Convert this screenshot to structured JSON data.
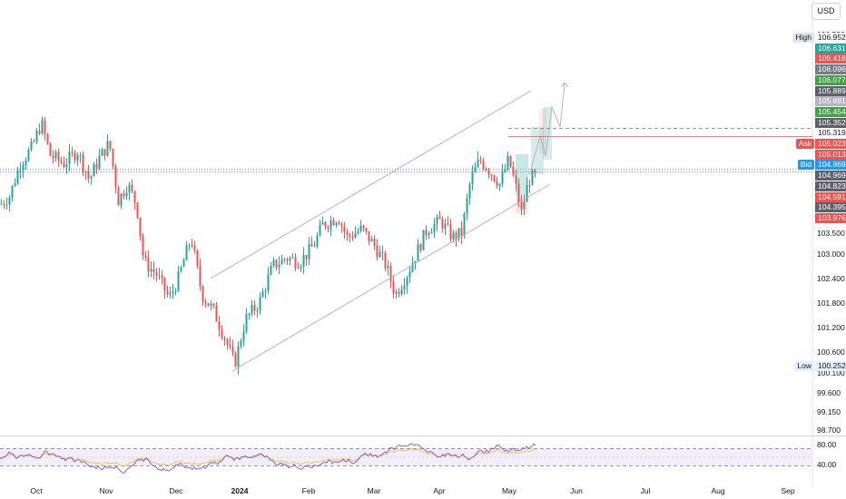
{
  "currency": "USD",
  "price_axis": {
    "ticks": [
      "106.500",
      "103.500",
      "103.000",
      "102.400",
      "101.800",
      "101.200",
      "100.600",
      "100.100",
      "99.600",
      "99.150",
      "98.700"
    ],
    "tick_values": [
      106.5,
      103.5,
      103.0,
      102.4,
      101.8,
      101.2,
      100.6,
      100.1,
      99.6,
      99.15,
      98.7
    ]
  },
  "price_tags": [
    {
      "value": "106.952",
      "color": "#ffffff",
      "text_color": "#131722",
      "side_label": "High"
    },
    {
      "value": "106.631",
      "color": "#26a69a",
      "text_color": "#ffffff"
    },
    {
      "value": "106.418",
      "color": "#ef5350",
      "text_color": "#ffffff"
    },
    {
      "value": "106.096",
      "color": "#787b86",
      "text_color": "#ffffff"
    },
    {
      "value": "106.077",
      "color": "#43a047",
      "text_color": "#ffffff"
    },
    {
      "value": "105.889",
      "color": "#5d606b",
      "text_color": "#ffffff"
    },
    {
      "value": "105.881",
      "color": "#b2b5be",
      "text_color": "#ffffff"
    },
    {
      "value": "105.454",
      "color": "#43a047",
      "text_color": "#ffffff"
    },
    {
      "value": "105.352",
      "color": "#5d606b",
      "text_color": "#ffffff"
    },
    {
      "value": "105.319",
      "color": "#ffffff",
      "text_color": "#131722"
    },
    {
      "value": "105.023",
      "color": "#ef5350",
      "text_color": "#ffffff",
      "side_label": "Ask",
      "side_color": "#ef5350"
    },
    {
      "value": "105.013",
      "color": "#ef5350",
      "text_color": "#ffffff"
    },
    {
      "value": "104.969",
      "color": "#2196f3",
      "text_color": "#ffffff",
      "side_label": "Bid",
      "side_color": "#2196f3"
    },
    {
      "value": "104.969",
      "color": "#5d606b",
      "text_color": "#ffffff"
    },
    {
      "value": "104.823",
      "color": "#5d606b",
      "text_color": "#ffffff"
    },
    {
      "value": "104.591",
      "color": "#ef5350",
      "text_color": "#ffffff"
    },
    {
      "value": "104.395",
      "color": "#5d606b",
      "text_color": "#ffffff"
    },
    {
      "value": "103.976",
      "color": "#ef5350",
      "text_color": "#ffffff"
    }
  ],
  "low_tag": {
    "value": "100.252",
    "side_label": "Low"
  },
  "rsi_axis": {
    "ticks": [
      "80.00",
      "40.00"
    ]
  },
  "time_axis": {
    "labels": [
      "Oct",
      "Nov",
      "Dec",
      "2024",
      "Feb",
      "Mar",
      "Apr",
      "May",
      "Jun",
      "Jul",
      "Aug",
      "Sep"
    ]
  },
  "colors": {
    "up": "#26a69a",
    "down": "#ef5350",
    "rsi": "#7e57c2",
    "channel": "#b2b5be"
  }
}
